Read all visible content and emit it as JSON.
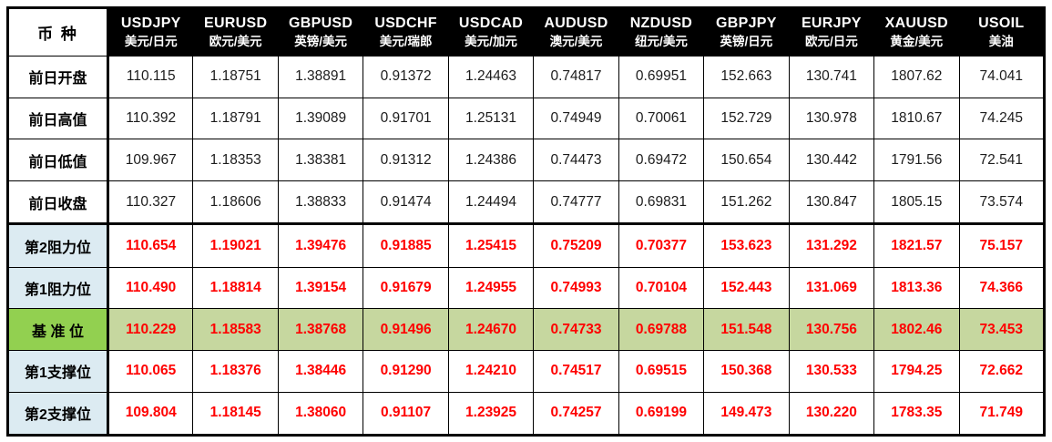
{
  "colors": {
    "header_bg": "#000000",
    "header_text": "#ffffff",
    "body_text": "#1c1c1c",
    "level_text": "#ff0000",
    "rs_label_bg": "#dcebf2",
    "pivot_label_bg": "#92d050",
    "pivot_row_bg": "#c6d79f",
    "border": "#000000"
  },
  "chart_data": {
    "type": "table",
    "corner_label": "币 种",
    "columns": [
      {
        "symbol": "USDJPY",
        "name_cn": "美元/日元"
      },
      {
        "symbol": "EURUSD",
        "name_cn": "欧元/美元"
      },
      {
        "symbol": "GBPUSD",
        "name_cn": "英镑/美元"
      },
      {
        "symbol": "USDCHF",
        "name_cn": "美元/瑞郎"
      },
      {
        "symbol": "USDCAD",
        "name_cn": "美元/加元"
      },
      {
        "symbol": "AUDUSD",
        "name_cn": "澳元/美元"
      },
      {
        "symbol": "NZDUSD",
        "name_cn": "纽元/美元"
      },
      {
        "symbol": "GBPJPY",
        "name_cn": "英镑/日元"
      },
      {
        "symbol": "EURJPY",
        "name_cn": "欧元/日元"
      },
      {
        "symbol": "XAUUSD",
        "name_cn": "黄金/美元"
      },
      {
        "symbol": "USOIL",
        "name_cn": "美油"
      }
    ],
    "rows": [
      {
        "label": "前日开盘",
        "kind": "prev",
        "values": [
          "110.115",
          "1.18751",
          "1.38891",
          "0.91372",
          "1.24463",
          "0.74817",
          "0.69951",
          "152.663",
          "130.741",
          "1807.62",
          "74.041"
        ]
      },
      {
        "label": "前日高值",
        "kind": "prev",
        "values": [
          "110.392",
          "1.18791",
          "1.39089",
          "0.91701",
          "1.25131",
          "0.74949",
          "0.70061",
          "152.729",
          "130.978",
          "1810.67",
          "74.245"
        ]
      },
      {
        "label": "前日低值",
        "kind": "prev",
        "values": [
          "109.967",
          "1.18353",
          "1.38381",
          "0.91312",
          "1.24386",
          "0.74473",
          "0.69472",
          "150.654",
          "130.442",
          "1791.56",
          "72.541"
        ]
      },
      {
        "label": "前日收盘",
        "kind": "prev",
        "values": [
          "110.327",
          "1.18606",
          "1.38833",
          "0.91474",
          "1.24494",
          "0.74777",
          "0.69831",
          "151.262",
          "130.847",
          "1805.15",
          "73.574"
        ]
      },
      {
        "label": "第2阻力位",
        "kind": "resistance",
        "values": [
          "110.654",
          "1.19021",
          "1.39476",
          "0.91885",
          "1.25415",
          "0.75209",
          "0.70377",
          "153.623",
          "131.292",
          "1821.57",
          "75.157"
        ]
      },
      {
        "label": "第1阻力位",
        "kind": "resistance",
        "values": [
          "110.490",
          "1.18814",
          "1.39154",
          "0.91679",
          "1.24955",
          "0.74993",
          "0.70104",
          "152.443",
          "131.069",
          "1813.36",
          "74.366"
        ]
      },
      {
        "label": "基 准 位",
        "kind": "pivot",
        "values": [
          "110.229",
          "1.18583",
          "1.38768",
          "0.91496",
          "1.24670",
          "0.74733",
          "0.69788",
          "151.548",
          "130.756",
          "1802.46",
          "73.453"
        ]
      },
      {
        "label": "第1支撑位",
        "kind": "support",
        "values": [
          "110.065",
          "1.18376",
          "1.38446",
          "0.91290",
          "1.24210",
          "0.74517",
          "0.69515",
          "150.368",
          "130.533",
          "1794.25",
          "72.662"
        ]
      },
      {
        "label": "第2支撑位",
        "kind": "support",
        "values": [
          "109.804",
          "1.18145",
          "1.38060",
          "0.91107",
          "1.23925",
          "0.74257",
          "0.69199",
          "149.473",
          "130.220",
          "1783.35",
          "71.749"
        ]
      }
    ]
  }
}
